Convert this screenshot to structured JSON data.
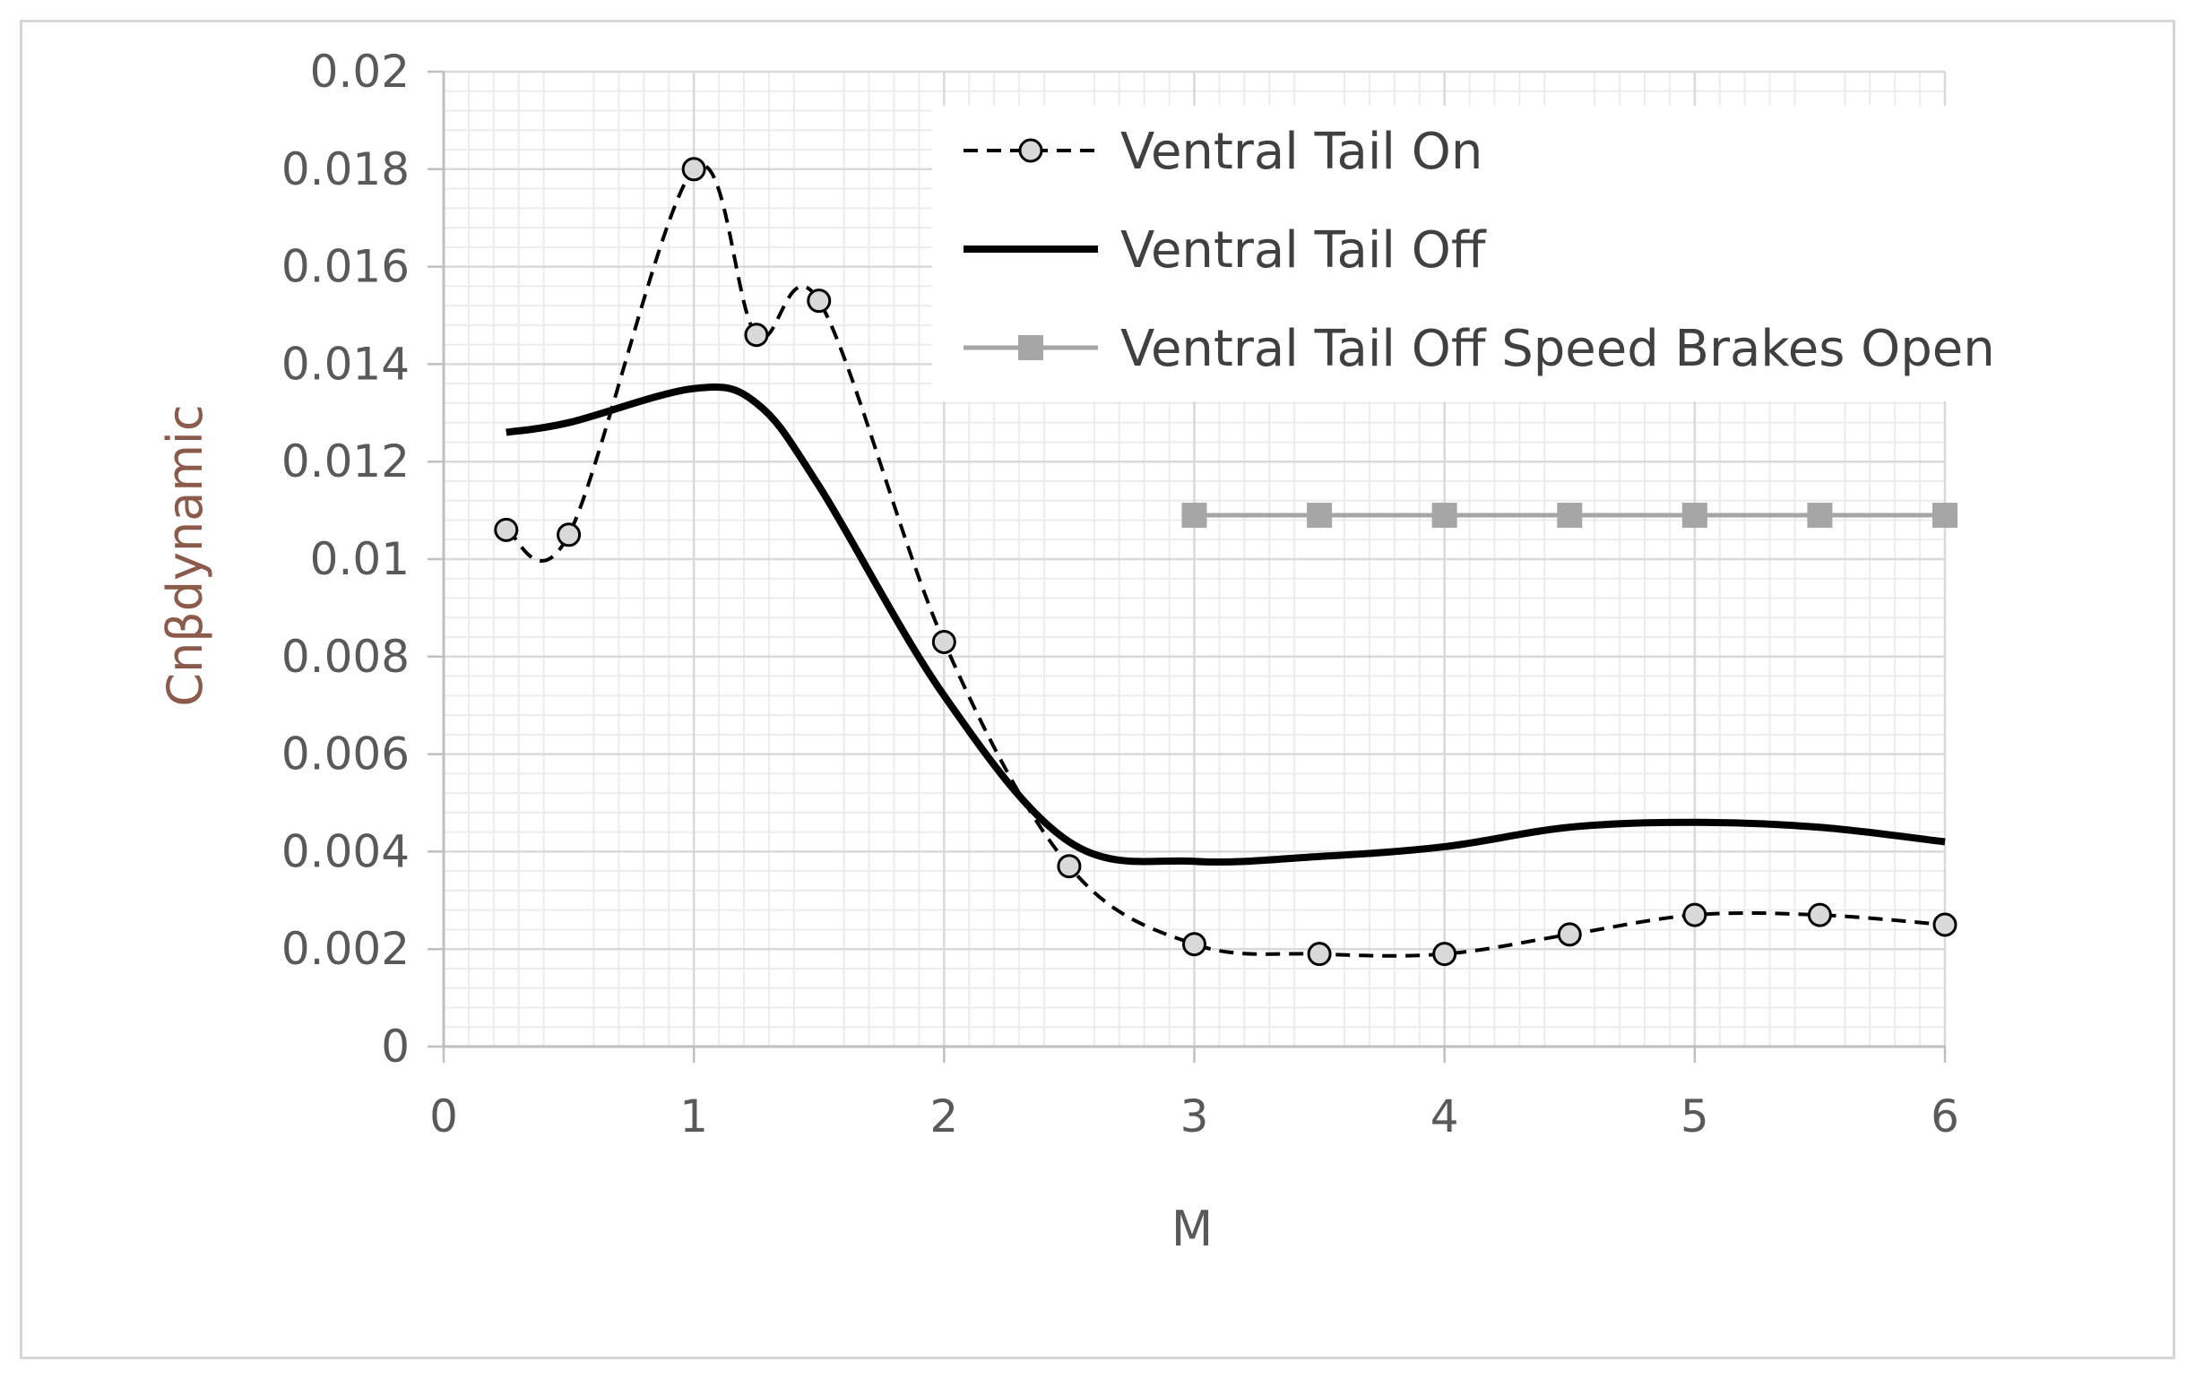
{
  "chart_data": {
    "type": "line",
    "xlabel": "M",
    "ylabel": "Cnβdynamic",
    "xlim": [
      0,
      6
    ],
    "ylim": [
      0,
      0.02
    ],
    "x_ticks": [
      "0",
      "1",
      "2",
      "3",
      "4",
      "5",
      "6"
    ],
    "y_ticks": [
      "0",
      "0.002",
      "0.004",
      "0.006",
      "0.008",
      "0.01",
      "0.012",
      "0.014",
      "0.016",
      "0.018",
      "0.02"
    ],
    "grid": true,
    "legend_position": "top-right",
    "series": [
      {
        "name": "Ventral Tail On",
        "style": "dashed",
        "marker": "circle",
        "color": "#000000",
        "x": [
          0.25,
          0.5,
          1.0,
          1.25,
          1.5,
          2.0,
          2.5,
          3.0,
          3.5,
          4.0,
          4.5,
          5.0,
          5.5,
          6.0
        ],
        "y": [
          0.0106,
          0.0105,
          0.018,
          0.0146,
          0.0153,
          0.0083,
          0.0037,
          0.0021,
          0.0019,
          0.0019,
          0.0023,
          0.0027,
          0.0027,
          0.0025
        ]
      },
      {
        "name": "Ventral Tail Off",
        "style": "solid",
        "marker": "none",
        "color": "#000000",
        "x": [
          0.25,
          0.5,
          1.0,
          1.25,
          1.5,
          2.0,
          2.5,
          3.0,
          3.5,
          4.0,
          4.5,
          5.0,
          5.5,
          6.0
        ],
        "y": [
          0.0126,
          0.0128,
          0.0135,
          0.0132,
          0.0115,
          0.0072,
          0.0042,
          0.0038,
          0.0039,
          0.0041,
          0.0045,
          0.0046,
          0.0045,
          0.0042
        ]
      },
      {
        "name": "Ventral Tail Off Speed Brakes Open",
        "style": "solid",
        "marker": "square",
        "color": "#a6a6a6",
        "x": [
          3.0,
          3.5,
          4.0,
          4.5,
          5.0,
          5.5,
          6.0
        ],
        "y": [
          0.0109,
          0.0109,
          0.0109,
          0.0109,
          0.0109,
          0.0109,
          0.0109
        ]
      }
    ]
  }
}
